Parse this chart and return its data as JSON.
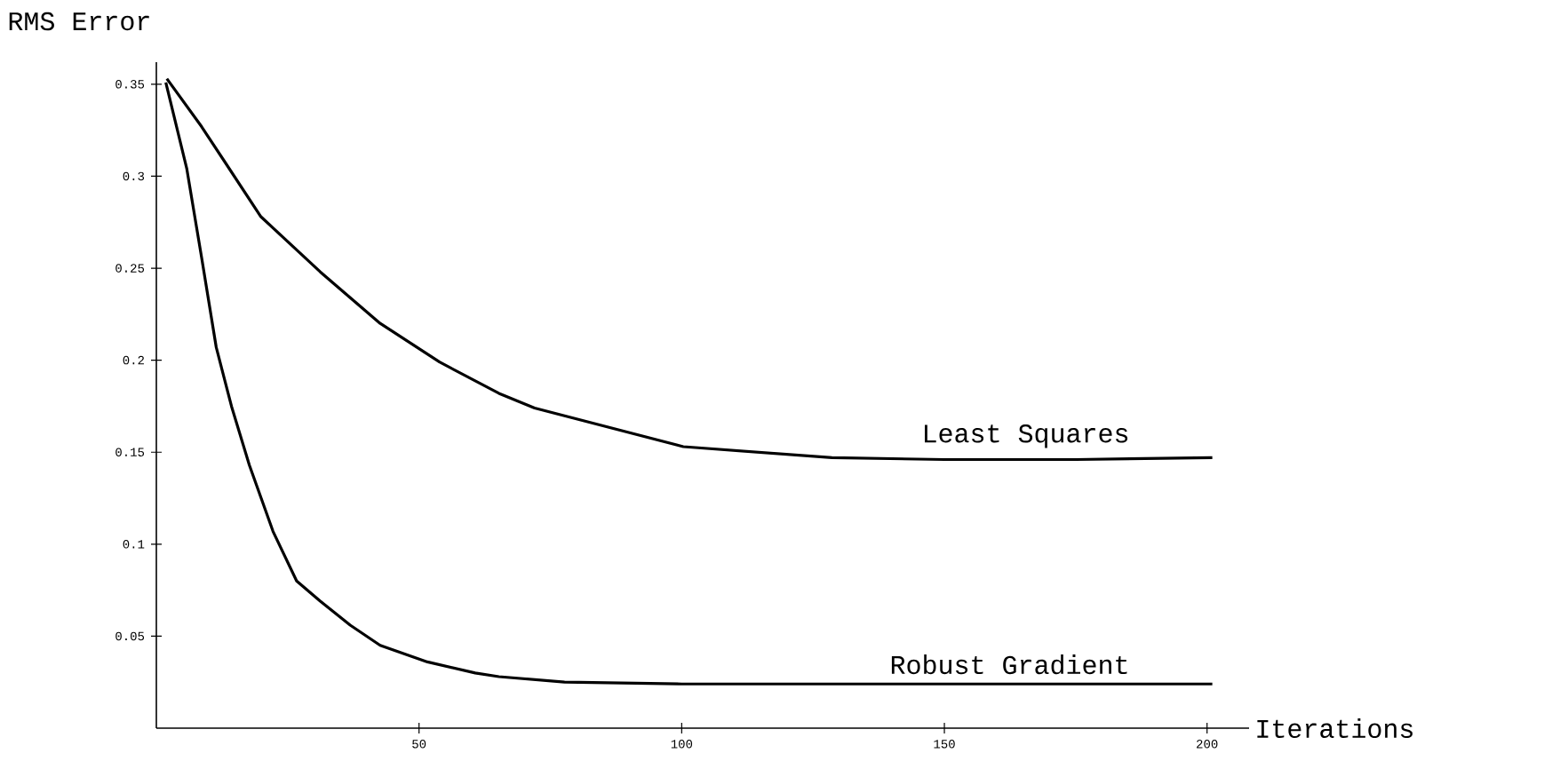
{
  "chart_data": {
    "type": "line",
    "xlabel": "Iterations",
    "ylabel": "RMS Error",
    "xlim": [
      0,
      208
    ],
    "ylim": [
      0,
      0.362
    ],
    "xticks": [
      50,
      100,
      150,
      200
    ],
    "yticks": [
      0.05,
      0.1,
      0.15,
      0.2,
      0.25,
      0.3,
      0.35
    ],
    "grid": false,
    "legend": false,
    "marker": "none",
    "line_style": "solid",
    "series": [
      {
        "name": "Least Squares",
        "color": "#000000",
        "x": [
          2,
          8.6,
          19.9,
          31.2,
          42.6,
          53.9,
          65.2,
          72,
          100.3,
          128.6,
          150,
          175,
          201
        ],
        "values": [
          0.353,
          0.327,
          0.278,
          0.248,
          0.22,
          0.199,
          0.182,
          0.174,
          0.153,
          0.147,
          0.146,
          0.146,
          0.147
        ]
      },
      {
        "name": "Robust Gradient",
        "color": "#000000",
        "x": [
          1.8,
          5.8,
          8.6,
          11.4,
          14.3,
          17.7,
          22.2,
          26.7,
          31.2,
          36.9,
          42.6,
          51.6,
          60.7,
          65.2,
          77.7,
          100,
          150,
          201
        ],
        "values": [
          0.351,
          0.304,
          0.256,
          0.207,
          0.175,
          0.143,
          0.107,
          0.08,
          0.069,
          0.056,
          0.045,
          0.036,
          0.03,
          0.028,
          0.025,
          0.024,
          0.024,
          0.024
        ]
      }
    ]
  }
}
